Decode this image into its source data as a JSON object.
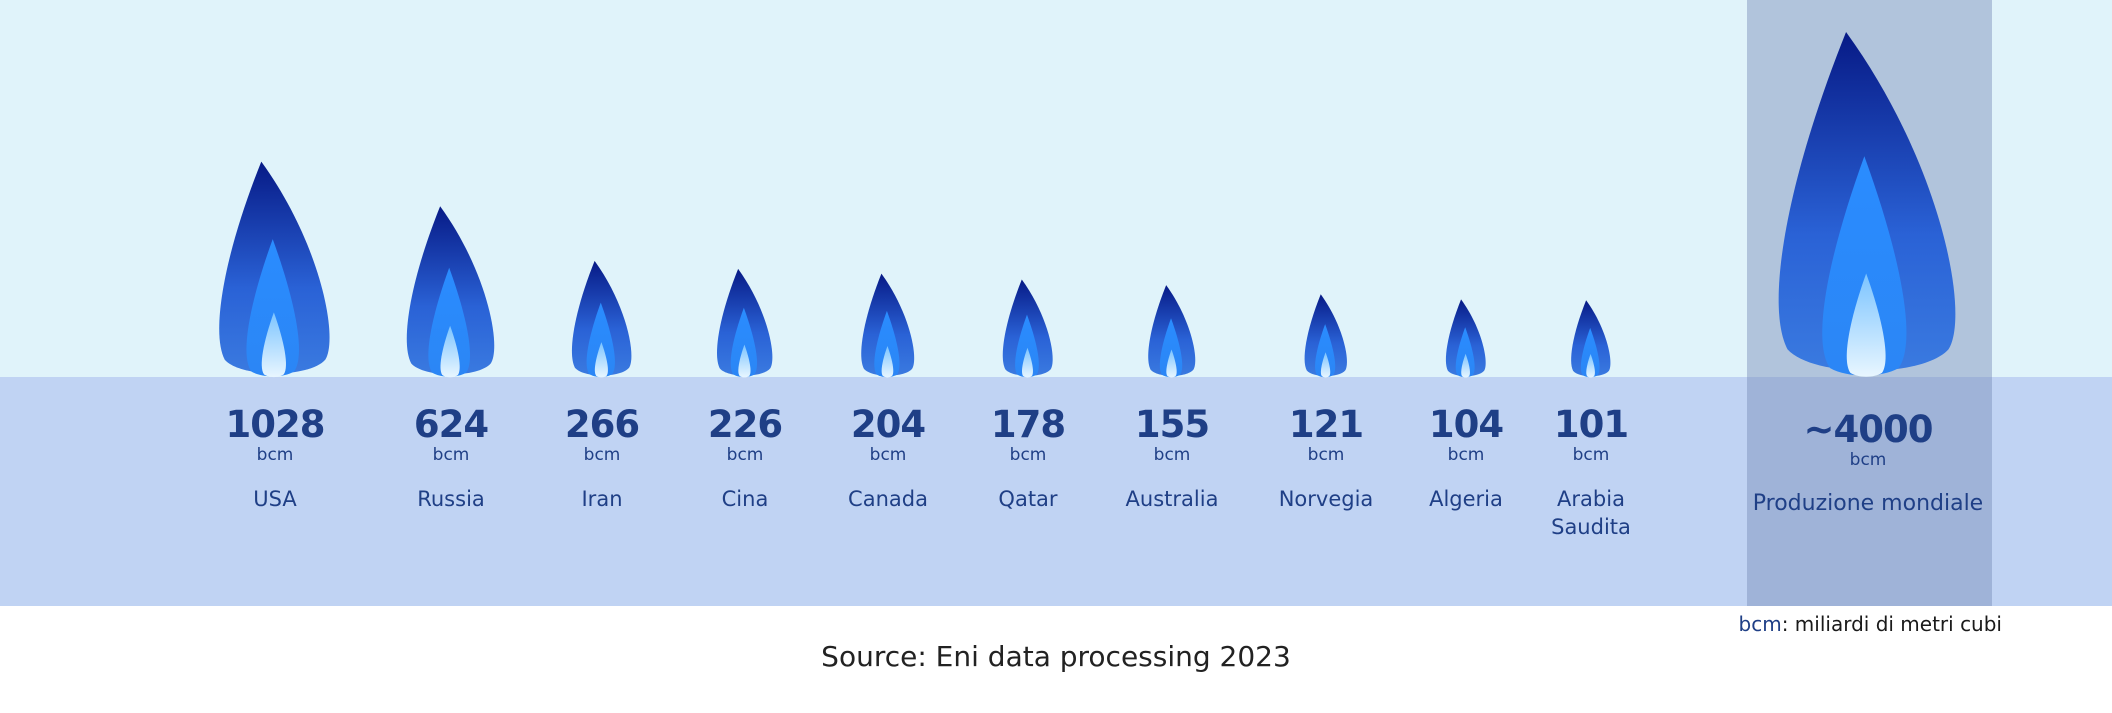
{
  "chart_data": {
    "type": "bar",
    "categories": [
      "USA",
      "Russia",
      "Iran",
      "Cina",
      "Canada",
      "Qatar",
      "Australia",
      "Norvegia",
      "Algeria",
      "Arabia Saudita"
    ],
    "values": [
      1028,
      624,
      266,
      226,
      204,
      178,
      155,
      121,
      104,
      101
    ],
    "value_labels": [
      "1028",
      "624",
      "266",
      "226",
      "204",
      "178",
      "155",
      "121",
      "104",
      "101"
    ],
    "unit": "bcm",
    "world": {
      "label": "Produzione mondiale",
      "value_label": "~4000",
      "value": 4000,
      "unit": "bcm"
    },
    "legend": {
      "abbr": "bcm",
      "text": ": miliardi di metri cubi"
    },
    "source": "Source: Eni data processing 2023",
    "colors": {
      "flame_outer_top": "#071a86",
      "flame_outer_bottom": "#2f6fd8",
      "flame_mid": "#2a8cff",
      "flame_inner": "#dff2ff",
      "text": "#1f3f86"
    }
  }
}
